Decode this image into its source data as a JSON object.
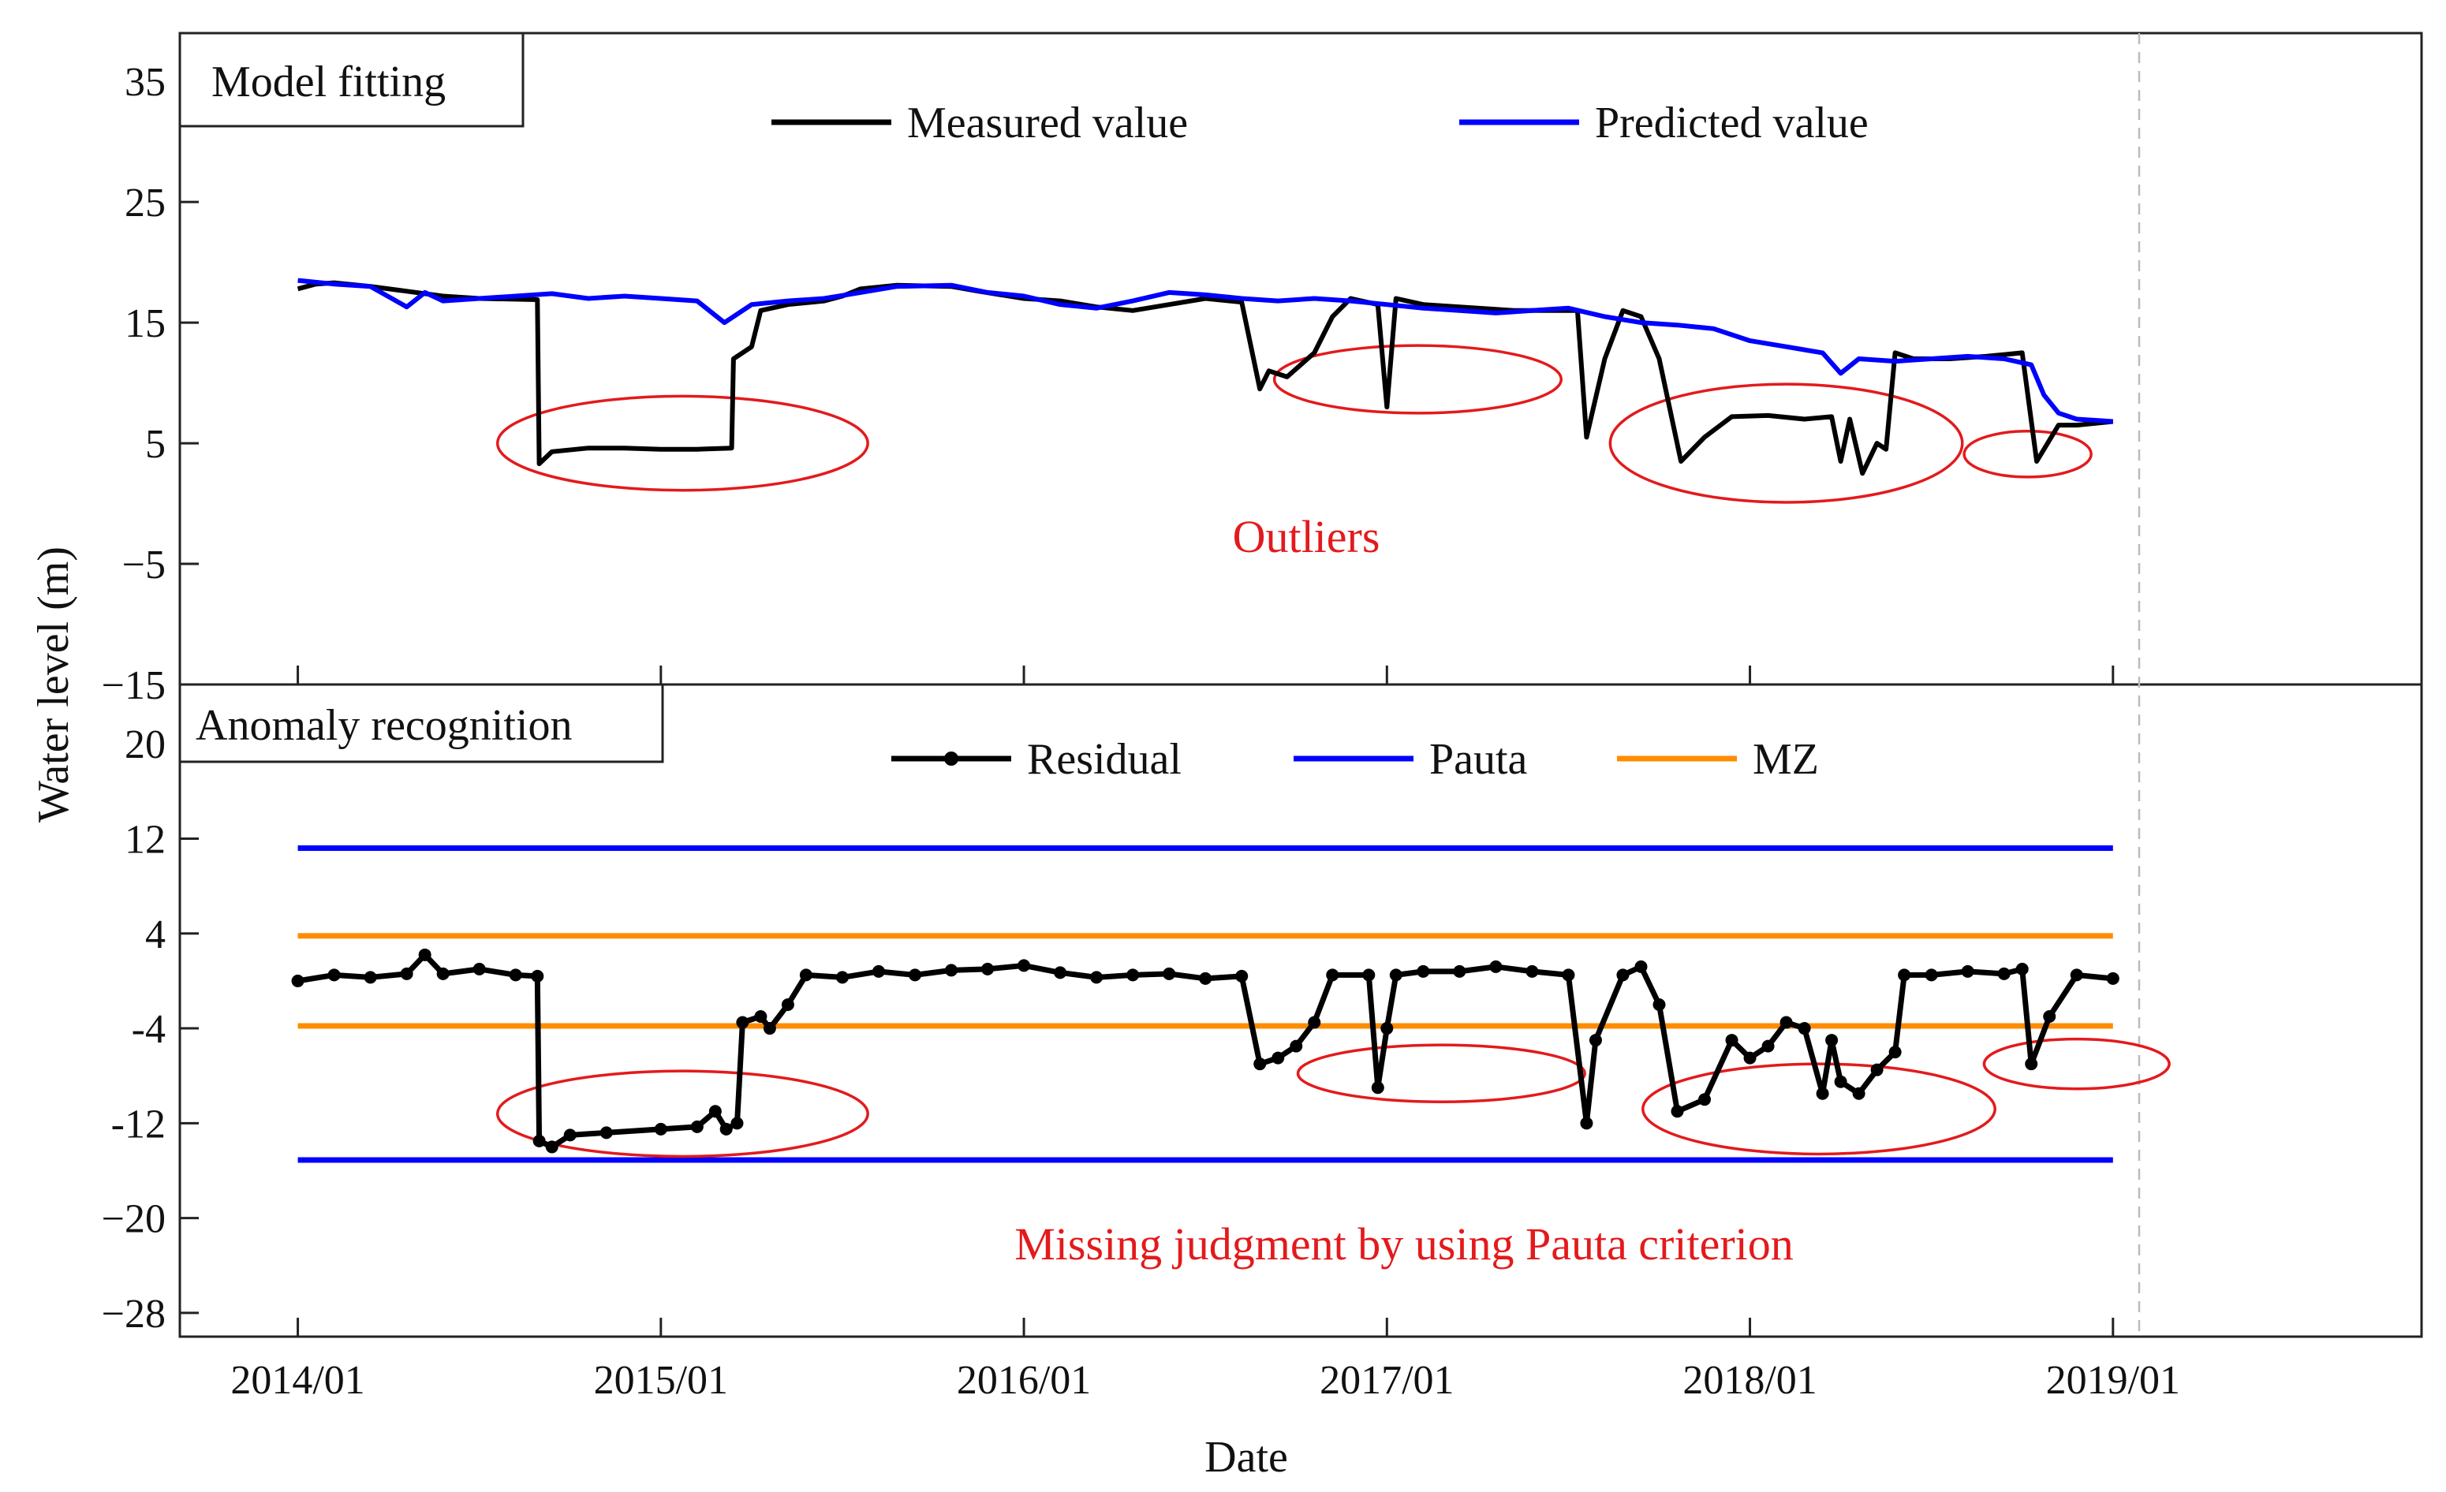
{
  "chart_data": [
    {
      "type": "line",
      "panel": "top",
      "title": "Model fitting",
      "ylabel": "Water level (m)",
      "ylim": [
        -15,
        39
      ],
      "yticks": [
        35,
        25,
        15,
        5,
        -5,
        -15
      ],
      "ytick_labels": [
        "35",
        "25",
        "15",
        "5",
        "−5",
        "−15"
      ],
      "legend": [
        "Measured value",
        "Predicted value"
      ],
      "annotation": "Outliers",
      "series": [
        {
          "name": "Measured value",
          "color": "#000000",
          "points": [
            [
              0,
              17.8
            ],
            [
              0.1,
              18.2
            ],
            [
              0.2,
              18.3
            ],
            [
              0.4,
              18.0
            ],
            [
              0.6,
              17.6
            ],
            [
              0.8,
              17.2
            ],
            [
              1.0,
              17.0
            ],
            [
              1.32,
              16.9
            ],
            [
              1.33,
              3.3
            ],
            [
              1.4,
              4.3
            ],
            [
              1.6,
              4.6
            ],
            [
              1.8,
              4.6
            ],
            [
              2.0,
              4.5
            ],
            [
              2.2,
              4.5
            ],
            [
              2.39,
              4.6
            ],
            [
              2.4,
              12.0
            ],
            [
              2.5,
              13.0
            ],
            [
              2.55,
              16.0
            ],
            [
              2.7,
              16.5
            ],
            [
              2.9,
              16.8
            ],
            [
              3.0,
              17.2
            ],
            [
              3.1,
              17.8
            ],
            [
              3.3,
              18.1
            ],
            [
              3.6,
              18.0
            ],
            [
              3.75,
              17.6
            ],
            [
              4.0,
              17.0
            ],
            [
              4.2,
              16.8
            ],
            [
              4.4,
              16.3
            ],
            [
              4.6,
              16.0
            ],
            [
              4.8,
              16.5
            ],
            [
              5.0,
              17.0
            ],
            [
              5.2,
              16.7
            ],
            [
              5.3,
              9.5
            ],
            [
              5.35,
              11.0
            ],
            [
              5.45,
              10.5
            ],
            [
              5.6,
              12.5
            ],
            [
              5.7,
              15.5
            ],
            [
              5.8,
              17.0
            ],
            [
              5.95,
              16.5
            ],
            [
              6.0,
              8.0
            ],
            [
              6.05,
              17.0
            ],
            [
              6.2,
              16.5
            ],
            [
              6.5,
              16.2
            ],
            [
              6.7,
              16.0
            ],
            [
              6.9,
              16.0
            ],
            [
              7.05,
              16.0
            ],
            [
              7.1,
              5.5
            ],
            [
              7.2,
              12.0
            ],
            [
              7.3,
              16.0
            ],
            [
              7.4,
              15.5
            ],
            [
              7.5,
              12.0
            ],
            [
              7.62,
              3.5
            ],
            [
              7.75,
              5.5
            ],
            [
              7.9,
              7.2
            ],
            [
              8.1,
              7.3
            ],
            [
              8.3,
              7.0
            ],
            [
              8.45,
              7.2
            ],
            [
              8.5,
              3.5
            ],
            [
              8.55,
              7.0
            ],
            [
              8.62,
              2.5
            ],
            [
              8.7,
              5.0
            ],
            [
              8.75,
              4.5
            ],
            [
              8.8,
              12.5
            ],
            [
              8.9,
              12.0
            ],
            [
              9.1,
              12.0
            ],
            [
              9.3,
              12.2
            ],
            [
              9.5,
              12.5
            ],
            [
              9.58,
              3.5
            ],
            [
              9.7,
              6.5
            ],
            [
              9.8,
              6.5
            ],
            [
              10.0,
              6.8
            ]
          ]
        },
        {
          "name": "Predicted value",
          "color": "#0000ff",
          "points": [
            [
              0,
              18.5
            ],
            [
              0.2,
              18.2
            ],
            [
              0.4,
              18.0
            ],
            [
              0.6,
              16.3
            ],
            [
              0.7,
              17.5
            ],
            [
              0.8,
              16.8
            ],
            [
              1.0,
              17.0
            ],
            [
              1.2,
              17.2
            ],
            [
              1.4,
              17.4
            ],
            [
              1.6,
              17.0
            ],
            [
              1.8,
              17.2
            ],
            [
              2.0,
              17.0
            ],
            [
              2.2,
              16.8
            ],
            [
              2.35,
              15.0
            ],
            [
              2.5,
              16.5
            ],
            [
              2.7,
              16.8
            ],
            [
              2.9,
              17.0
            ],
            [
              3.1,
              17.5
            ],
            [
              3.3,
              18.0
            ],
            [
              3.6,
              18.1
            ],
            [
              3.8,
              17.5
            ],
            [
              4.0,
              17.2
            ],
            [
              4.2,
              16.5
            ],
            [
              4.4,
              16.2
            ],
            [
              4.6,
              16.8
            ],
            [
              4.8,
              17.5
            ],
            [
              5.0,
              17.3
            ],
            [
              5.2,
              17.0
            ],
            [
              5.4,
              16.8
            ],
            [
              5.6,
              17.0
            ],
            [
              5.8,
              16.8
            ],
            [
              6.0,
              16.5
            ],
            [
              6.2,
              16.2
            ],
            [
              6.4,
              16.0
            ],
            [
              6.6,
              15.8
            ],
            [
              6.8,
              16.0
            ],
            [
              7.0,
              16.2
            ],
            [
              7.2,
              15.5
            ],
            [
              7.4,
              15.0
            ],
            [
              7.6,
              14.8
            ],
            [
              7.8,
              14.5
            ],
            [
              8.0,
              13.5
            ],
            [
              8.2,
              13.0
            ],
            [
              8.4,
              12.5
            ],
            [
              8.5,
              10.8
            ],
            [
              8.6,
              12.0
            ],
            [
              8.8,
              11.8
            ],
            [
              9.0,
              12.0
            ],
            [
              9.2,
              12.2
            ],
            [
              9.4,
              12.0
            ],
            [
              9.55,
              11.5
            ],
            [
              9.62,
              9.0
            ],
            [
              9.7,
              7.5
            ],
            [
              9.8,
              7.0
            ],
            [
              10.0,
              6.8
            ]
          ]
        }
      ],
      "ellipses": [
        {
          "cx": 2.12,
          "cy": 5.0,
          "rx": 1.02,
          "ry": 3.9
        },
        {
          "cx": 6.17,
          "cy": 10.3,
          "rx": 0.79,
          "ry": 2.8
        },
        {
          "cx": 8.2,
          "cy": 5.0,
          "rx": 0.97,
          "ry": 4.9
        },
        {
          "cx": 9.53,
          "cy": 4.1,
          "rx": 0.35,
          "ry": 1.9
        }
      ]
    },
    {
      "type": "line",
      "panel": "bottom",
      "title": "Anomaly recognition",
      "ylim": [
        -30,
        25
      ],
      "yticks": [
        20,
        12,
        4,
        -4,
        -12,
        -20,
        -28
      ],
      "ytick_labels": [
        "20",
        "12",
        "4",
        "-4",
        "-12",
        "−20",
        "−28"
      ],
      "xlabel": "Date",
      "xlim": [
        -0.65,
        11.7
      ],
      "xticks": [
        0,
        2,
        4,
        6,
        8,
        10
      ],
      "xtick_labels": [
        "2014/01",
        "2015/01",
        "2016/01",
        "2017/01",
        "2018/01",
        "2019/01"
      ],
      "legend": [
        "Residual",
        "Pauta",
        "MZ"
      ],
      "annotation": "Missing judgment by using Pauta criterion",
      "thresholds": [
        {
          "name": "Pauta",
          "color": "#0000ff",
          "values": [
            11.2,
            -15.1
          ]
        },
        {
          "name": "MZ",
          "color": "#ff8c00",
          "values": [
            3.8,
            -3.8
          ]
        }
      ],
      "series": [
        {
          "name": "Residual",
          "color": "#000000",
          "points": [
            [
              0,
              0
            ],
            [
              0.2,
              0.5
            ],
            [
              0.4,
              0.3
            ],
            [
              0.6,
              0.6
            ],
            [
              0.7,
              2.2
            ],
            [
              0.8,
              0.6
            ],
            [
              1.0,
              1.0
            ],
            [
              1.2,
              0.5
            ],
            [
              1.32,
              0.4
            ],
            [
              1.33,
              -13.5
            ],
            [
              1.4,
              -14.0
            ],
            [
              1.5,
              -13.0
            ],
            [
              1.7,
              -12.8
            ],
            [
              2.0,
              -12.5
            ],
            [
              2.2,
              -12.3
            ],
            [
              2.3,
              -11.0
            ],
            [
              2.36,
              -12.5
            ],
            [
              2.42,
              -12.0
            ],
            [
              2.45,
              -3.5
            ],
            [
              2.55,
              -3.0
            ],
            [
              2.6,
              -4.0
            ],
            [
              2.7,
              -2.0
            ],
            [
              2.8,
              0.5
            ],
            [
              3.0,
              0.3
            ],
            [
              3.2,
              0.8
            ],
            [
              3.4,
              0.5
            ],
            [
              3.6,
              0.9
            ],
            [
              3.8,
              1.0
            ],
            [
              4.0,
              1.3
            ],
            [
              4.2,
              0.7
            ],
            [
              4.4,
              0.3
            ],
            [
              4.6,
              0.5
            ],
            [
              4.8,
              0.6
            ],
            [
              5.0,
              0.2
            ],
            [
              5.2,
              0.4
            ],
            [
              5.3,
              -7.0
            ],
            [
              5.4,
              -6.5
            ],
            [
              5.5,
              -5.5
            ],
            [
              5.6,
              -3.5
            ],
            [
              5.7,
              0.5
            ],
            [
              5.9,
              0.5
            ],
            [
              5.95,
              -9.0
            ],
            [
              6.0,
              -4.0
            ],
            [
              6.05,
              0.5
            ],
            [
              6.2,
              0.8
            ],
            [
              6.4,
              0.8
            ],
            [
              6.6,
              1.2
            ],
            [
              6.8,
              0.8
            ],
            [
              7.0,
              0.5
            ],
            [
              7.1,
              -12.0
            ],
            [
              7.15,
              -5.0
            ],
            [
              7.3,
              0.5
            ],
            [
              7.4,
              1.2
            ],
            [
              7.5,
              -2.0
            ],
            [
              7.6,
              -11.0
            ],
            [
              7.75,
              -10.0
            ],
            [
              7.9,
              -5.0
            ],
            [
              8.0,
              -6.5
            ],
            [
              8.1,
              -5.5
            ],
            [
              8.2,
              -3.5
            ],
            [
              8.3,
              -4.0
            ],
            [
              8.4,
              -9.5
            ],
            [
              8.45,
              -5.0
            ],
            [
              8.5,
              -8.5
            ],
            [
              8.6,
              -9.5
            ],
            [
              8.7,
              -7.5
            ],
            [
              8.8,
              -6.0
            ],
            [
              8.85,
              0.5
            ],
            [
              9.0,
              0.5
            ],
            [
              9.2,
              0.8
            ],
            [
              9.4,
              0.6
            ],
            [
              9.5,
              1.0
            ],
            [
              9.55,
              -7.0
            ],
            [
              9.65,
              -3.0
            ],
            [
              9.8,
              0.5
            ],
            [
              10.0,
              0.2
            ]
          ]
        }
      ],
      "ellipses": [
        {
          "cx": 2.12,
          "cy": -11.2,
          "rx": 1.02,
          "ry": 3.6
        },
        {
          "cx": 6.3,
          "cy": -7.8,
          "rx": 0.79,
          "ry": 2.4
        },
        {
          "cx": 8.38,
          "cy": -10.8,
          "rx": 0.97,
          "ry": 3.8
        },
        {
          "cx": 9.8,
          "cy": -7.0,
          "rx": 0.51,
          "ry": 2.1
        }
      ]
    }
  ]
}
